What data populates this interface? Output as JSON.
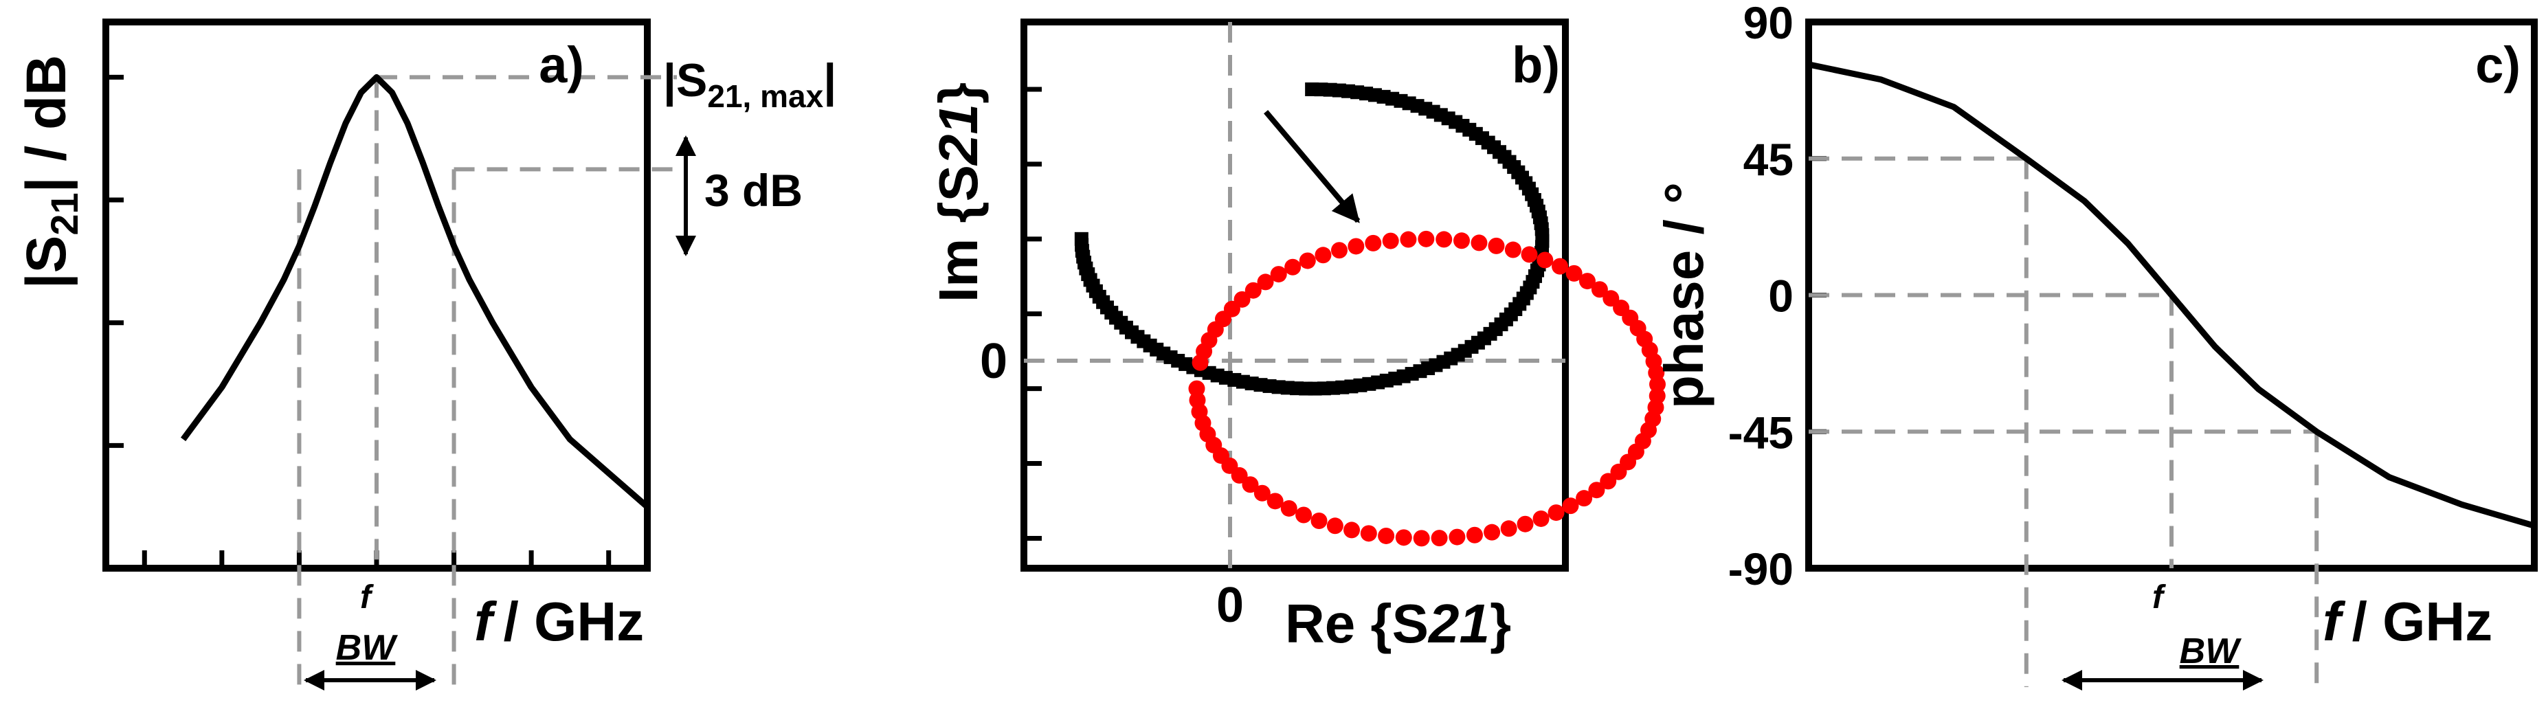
{
  "panels": {
    "a": {
      "tag": "a)",
      "ylabel": "|S",
      "ylabel_sub": "21",
      "ylabel_rest": "| / dB",
      "xlabel_f": "f",
      "xlabel_unit": "/ GHz",
      "max_label_pre": "|S",
      "max_label_sub": "21, max",
      "max_label_post": "|",
      "db_label": "3 dB",
      "bw_f": "f",
      "bw_sub": "BW"
    },
    "b": {
      "tag": "b)",
      "ylabel_pre": "Im {S",
      "ylabel_sub": "21",
      "ylabel_post": "}",
      "xlabel_pre": "Re {S",
      "xlabel_sub": "21",
      "xlabel_post": "}",
      "zero_x": "0",
      "zero_y": "0"
    },
    "c": {
      "tag": "c)",
      "ylabel": "phase / °",
      "xlabel_f": "f",
      "xlabel_unit": "/ GHz",
      "bw_f": "f",
      "bw_sub": "BW"
    }
  },
  "chart_data": [
    {
      "panel": "a",
      "type": "line",
      "title": "",
      "xlabel": "f / GHz",
      "ylabel": "|S21| / dB",
      "x": [
        -2.5,
        -2.0,
        -1.5,
        -1.2,
        -1.0,
        -0.8,
        -0.6,
        -0.4,
        -0.2,
        0.0,
        0.2,
        0.4,
        0.6,
        0.8,
        1.0,
        1.2,
        1.5,
        2.0,
        2.5,
        3.5
      ],
      "y": [
        -11.8,
        -10.1,
        -8.0,
        -6.6,
        -5.5,
        -4.2,
        -2.8,
        -1.5,
        -0.5,
        0.0,
        -0.5,
        -1.5,
        -2.8,
        -4.2,
        -5.5,
        -6.6,
        -8.0,
        -10.1,
        -11.8,
        -14.0
      ],
      "xlim": [
        -3.5,
        3.5
      ],
      "ylim": [
        -16,
        1.8
      ],
      "yticks": [
        -12,
        -8,
        -4,
        0
      ],
      "bandwidth": [
        -1.0,
        1.0
      ],
      "max_dB": 0,
      "drop_dB": -3,
      "color": "#000000"
    },
    {
      "panel": "b",
      "type": "scatter",
      "title": "",
      "xlabel": "Re {S21}",
      "ylabel": "Im {S21}",
      "xlim": [
        -0.75,
        1.6
      ],
      "ylim": [
        -1.2,
        2.45
      ],
      "yticks": [
        -1.0,
        -0.5,
        0.0,
        0.5,
        1.0,
        1.5,
        2.0
      ],
      "series": [
        {
          "color": "#000000",
          "marker": "square",
          "center": [
            0.5,
            1.0
          ],
          "radius": 1.0,
          "start_deg": -180,
          "end_deg": 90,
          "points": 120
        },
        {
          "color": "#ff0000",
          "marker": "circle",
          "center": [
            1.0,
            0.0
          ],
          "radius": 1.0,
          "start_deg": -180,
          "end_deg": 170,
          "points": 80
        }
      ],
      "arrow": {
        "from": [
          0.3,
          1.85
        ],
        "to": [
          0.7,
          1.12
        ]
      }
    },
    {
      "panel": "c",
      "type": "line",
      "title": "",
      "xlabel": "f / GHz",
      "ylabel": "phase / °",
      "x": [
        -2.5,
        -2.0,
        -1.5,
        -1.0,
        -0.6,
        -0.3,
        0.0,
        0.3,
        0.6,
        1.0,
        1.5,
        2.0,
        2.5
      ],
      "y": [
        76,
        71,
        62,
        45,
        31,
        17,
        0,
        -17,
        -31,
        -45,
        -60,
        -69,
        -76
      ],
      "xlim": [
        -2.5,
        2.5
      ],
      "ylim": [
        -90,
        90
      ],
      "yticks": [
        -90,
        -45,
        0,
        45,
        90
      ],
      "ytick_labels": [
        "-90",
        "-45",
        "0",
        "45",
        "90"
      ],
      "bandwidth": [
        -1.0,
        1.0
      ],
      "color": "#000000"
    }
  ]
}
